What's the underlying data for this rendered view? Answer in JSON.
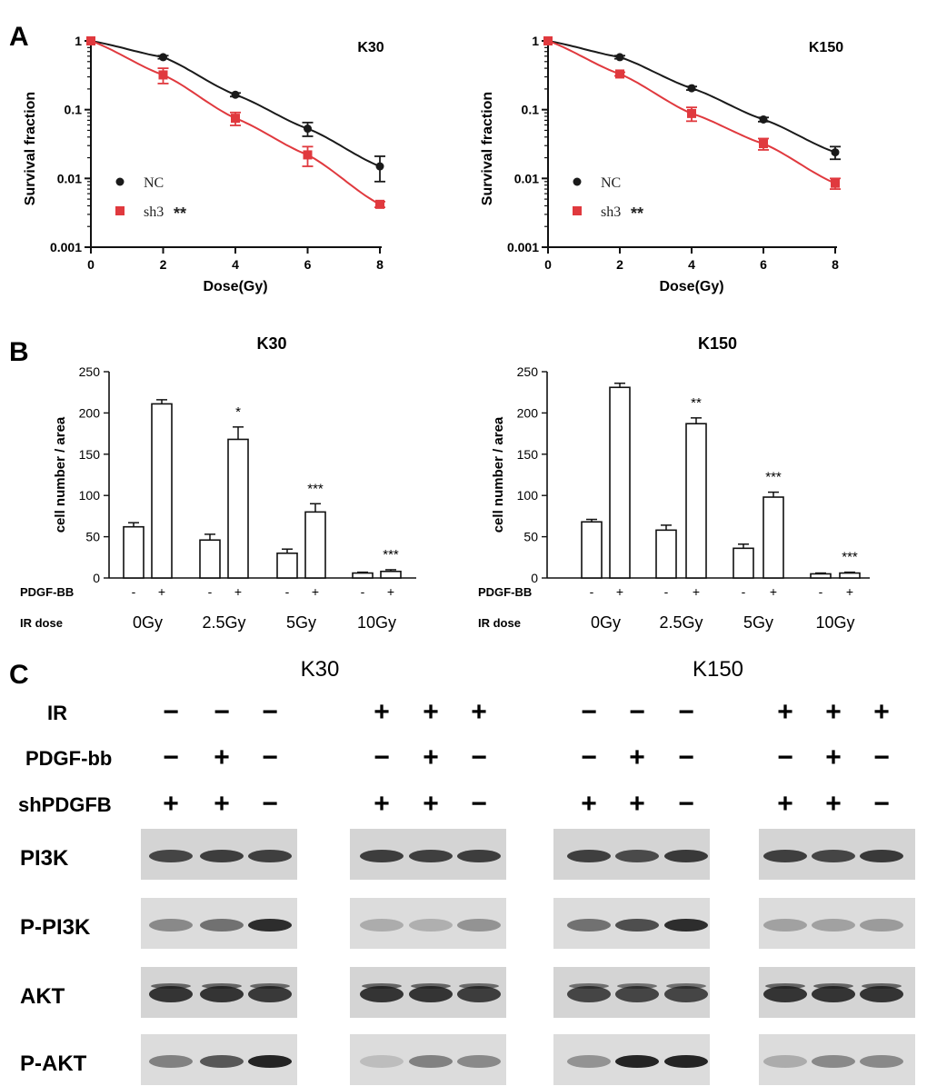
{
  "colors": {
    "nc": "#1a1a1a",
    "sh3": "#e0393e",
    "bar_edge": "#111111",
    "blot_bg": "#d4d4d4",
    "band": "#1c1c1c"
  },
  "panel_a": {
    "label": "A",
    "y_ticks": [
      "1",
      "0.1",
      "0.01",
      "0.001"
    ],
    "x_ticks": [
      "0",
      "2",
      "4",
      "6",
      "8"
    ],
    "legend": {
      "nc": "NC",
      "sh3": "sh3",
      "sig": "**"
    },
    "charts": [
      {
        "type": "scatter",
        "title": "K30",
        "xlabel": "Dose(Gy)",
        "ylabel": "Survival fraction",
        "xlim": [
          0,
          8
        ],
        "ylim": [
          0.001,
          1
        ],
        "y_scale": "log",
        "legend_position": "bottom-left",
        "series": [
          {
            "name": "NC",
            "x": [
              0,
              2,
              4,
              6,
              8
            ],
            "y": [
              1,
              0.58,
              0.165,
              0.053,
              0.015
            ],
            "err": [
              0,
              0.03,
              0.01,
              0.012,
              0.006
            ]
          },
          {
            "name": "sh3",
            "x": [
              0,
              2,
              4,
              6,
              8
            ],
            "y": [
              1,
              0.32,
              0.075,
              0.022,
              0.0042
            ],
            "err": [
              0,
              0.08,
              0.016,
              0.007,
              0.0004
            ]
          }
        ]
      },
      {
        "type": "scatter",
        "title": "K150",
        "xlabel": "Dose(Gy)",
        "ylabel": "Survival fraction",
        "xlim": [
          0,
          8
        ],
        "ylim": [
          0.001,
          1
        ],
        "y_scale": "log",
        "legend_position": "bottom-left",
        "series": [
          {
            "name": "NC",
            "x": [
              0,
              2,
              4,
              6,
              8
            ],
            "y": [
              1,
              0.58,
              0.205,
              0.072,
              0.024
            ],
            "err": [
              0,
              0.03,
              0.012,
              0.005,
              0.005
            ]
          },
          {
            "name": "sh3",
            "x": [
              0,
              2,
              4,
              6,
              8
            ],
            "y": [
              1,
              0.33,
              0.088,
              0.032,
              0.0085
            ],
            "err": [
              0,
              0.02,
              0.02,
              0.006,
              0.0015
            ]
          }
        ]
      }
    ]
  },
  "panel_b": {
    "label": "B",
    "row_labels": [
      "PDGF-BB",
      "IR dose"
    ],
    "pdgf_signs": [
      "-",
      "+",
      "-",
      "+",
      "-",
      "+",
      "-",
      "+"
    ],
    "charts": [
      {
        "type": "bar",
        "title": "K30",
        "ylabel": "cell number / area",
        "ylim": [
          0,
          250
        ],
        "y_ticks": [
          "0",
          "50",
          "100",
          "150",
          "200",
          "250"
        ],
        "groups": [
          "0Gy",
          "2.5Gy",
          "5Gy",
          "10Gy"
        ],
        "values": [
          62,
          211,
          46,
          168,
          30,
          80,
          6,
          8
        ],
        "errors": [
          5,
          5,
          7,
          15,
          5,
          10,
          1,
          2
        ],
        "stars": [
          "",
          "*",
          "***",
          "***"
        ]
      },
      {
        "type": "bar",
        "title": "K150",
        "ylabel": "cell number / area",
        "ylim": [
          0,
          250
        ],
        "y_ticks": [
          "0",
          "50",
          "100",
          "150",
          "200",
          "250"
        ],
        "groups": [
          "0Gy",
          "2.5Gy",
          "5Gy",
          "10Gy"
        ],
        "values": [
          68,
          231,
          58,
          187,
          36,
          98,
          5,
          6
        ],
        "errors": [
          3,
          5,
          6,
          7,
          5,
          6,
          1,
          1
        ],
        "stars": [
          "",
          "**",
          "***",
          "***"
        ]
      }
    ]
  },
  "panel_c": {
    "label": "C",
    "group_titles": [
      "K30",
      "K150"
    ],
    "row_labels": [
      "IR",
      "PDGF-bb",
      "shPDGFB"
    ],
    "signs": {
      "ir": [
        "−",
        "−",
        "−",
        "+",
        "+",
        "+",
        "−",
        "−",
        "−",
        "+",
        "+",
        "+"
      ],
      "pdgf": [
        "−",
        "+",
        "−",
        "−",
        "+",
        "−",
        "−",
        "+",
        "−",
        "−",
        "+",
        "−"
      ],
      "shpdgfb": [
        "+",
        "+",
        "−",
        "+",
        "+",
        "−",
        "+",
        "+",
        "−",
        "+",
        "+",
        "−"
      ]
    },
    "blot_labels": [
      "PI3K",
      "P-PI3K",
      "AKT",
      "P-AKT"
    ],
    "band_intensity": [
      [
        0.75,
        0.8,
        0.78,
        0.8,
        0.78,
        0.8,
        0.78,
        0.72,
        0.82,
        0.78,
        0.75,
        0.82
      ],
      [
        0.35,
        0.5,
        0.9,
        0.15,
        0.12,
        0.3,
        0.5,
        0.7,
        0.9,
        0.2,
        0.2,
        0.25
      ],
      [
        0.85,
        0.85,
        0.82,
        0.85,
        0.85,
        0.8,
        0.75,
        0.75,
        0.75,
        0.85,
        0.85,
        0.85
      ],
      [
        0.4,
        0.65,
        0.95,
        0.05,
        0.4,
        0.35,
        0.3,
        0.95,
        0.95,
        0.15,
        0.35,
        0.35
      ]
    ]
  }
}
